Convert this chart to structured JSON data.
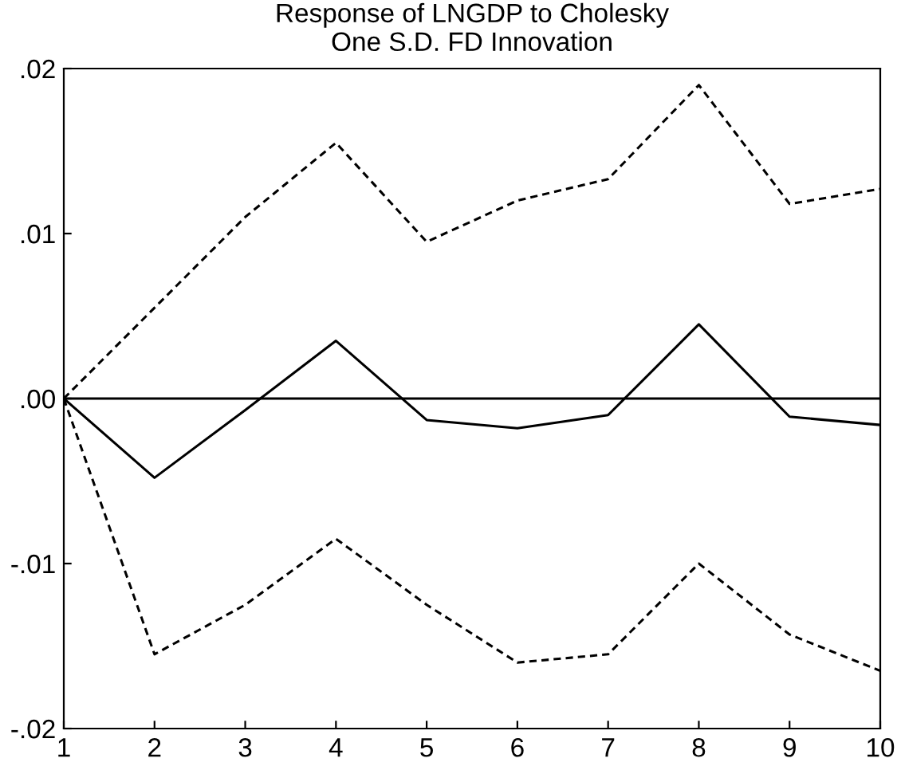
{
  "chart_data": {
    "type": "line",
    "title": "Response of LNGDP to Cholesky\nOne S.D. FD Innovation",
    "x": [
      1,
      2,
      3,
      4,
      5,
      6,
      7,
      8,
      9,
      10
    ],
    "series": [
      {
        "color": "#000000",
        "line_style": "solid",
        "values": [
          0,
          -0.0048,
          -0.0007,
          0.0035,
          -0.0013,
          -0.0018,
          -0.001,
          0.0045,
          -0.0011,
          -0.0016
        ]
      },
      {
        "color": "#000000",
        "line_style": "dashed",
        "values": [
          0,
          0.0055,
          0.011,
          0.0155,
          0.0095,
          0.012,
          0.0133,
          0.019,
          0.0118,
          0.0127
        ]
      },
      {
        "color": "#000000",
        "line_style": "dashed",
        "values": [
          0,
          -0.0155,
          -0.0125,
          -0.0085,
          -0.0125,
          -0.016,
          -0.0155,
          -0.01,
          -0.0143,
          -0.0165
        ]
      }
    ],
    "xlim": [
      1,
      10
    ],
    "xticks": [
      1,
      2,
      3,
      4,
      5,
      6,
      7,
      8,
      9,
      10
    ],
    "ylim": [
      -0.02,
      0.02
    ],
    "yticks": [
      {
        "value": -0.02,
        "label": "-.02"
      },
      {
        "value": -0.01,
        "label": "-.01"
      },
      {
        "value": 0,
        "label": ".00"
      },
      {
        "value": 0.01,
        "label": ".01"
      },
      {
        "value": 0.02,
        "label": ".02"
      }
    ],
    "ref_lines": [
      {
        "axis": "y",
        "value": 0,
        "color": "#000000",
        "line_style": "solid"
      }
    ],
    "grid": false,
    "legend": false,
    "marker": "none"
  }
}
